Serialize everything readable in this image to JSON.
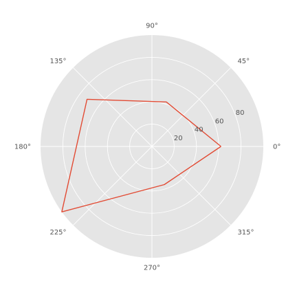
{
  "chart_data": {
    "type": "line",
    "projection": "polar",
    "theta_ticks": [
      "0°",
      "45°",
      "90°",
      "135°",
      "180°",
      "225°",
      "270°",
      "315°"
    ],
    "theta_tick_values_deg": [
      0,
      45,
      90,
      135,
      180,
      225,
      270,
      315
    ],
    "r_ticks": [
      "20",
      "40",
      "60",
      "80"
    ],
    "r_tick_values": [
      20,
      40,
      60,
      80
    ],
    "r_tick_angle_deg": 22.5,
    "rlim": [
      0,
      100
    ],
    "grid": true,
    "background": "#e5e5e5",
    "grid_color": "#ffffff",
    "series": [
      {
        "color": "#e24a33",
        "theta_deg": [
          0,
          72,
          144,
          216,
          288,
          360
        ],
        "r": [
          62,
          42,
          72,
          100,
          36,
          62
        ]
      }
    ]
  }
}
